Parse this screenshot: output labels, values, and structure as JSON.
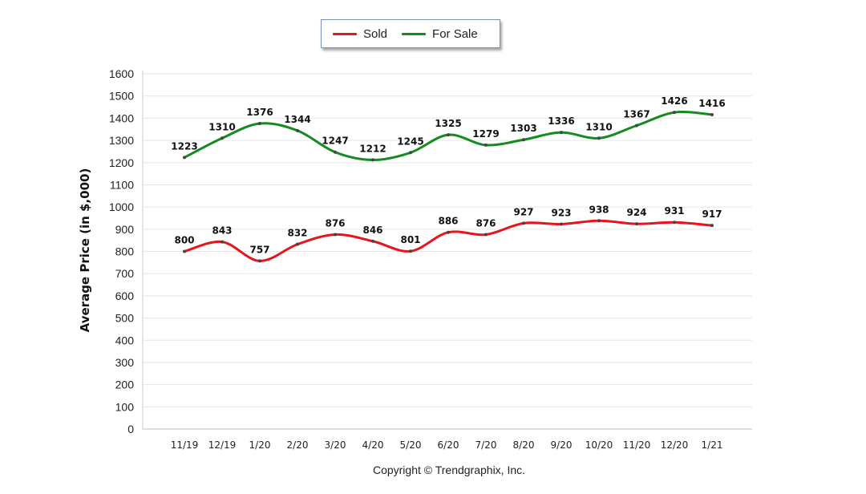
{
  "chart_data": {
    "type": "line",
    "categories": [
      "11/19",
      "12/19",
      "1/20",
      "2/20",
      "3/20",
      "4/20",
      "5/20",
      "6/20",
      "7/20",
      "8/20",
      "9/20",
      "10/20",
      "11/20",
      "12/20",
      "1/21"
    ],
    "series": [
      {
        "name": "Sold",
        "color": "#e8141b",
        "values": [
          800,
          843,
          757,
          832,
          876,
          846,
          801,
          886,
          876,
          927,
          923,
          938,
          924,
          931,
          917
        ]
      },
      {
        "name": "For Sale",
        "color": "#158a1e",
        "values": [
          1223,
          1310,
          1376,
          1344,
          1247,
          1212,
          1245,
          1325,
          1279,
          1303,
          1336,
          1310,
          1367,
          1426,
          1416
        ]
      }
    ],
    "ylabel": "Average Price (in $,000)",
    "ylim": [
      0,
      1600
    ],
    "yticks": [
      0,
      100,
      200,
      300,
      400,
      500,
      600,
      700,
      800,
      900,
      1000,
      1100,
      1200,
      1300,
      1400,
      1500,
      1600
    ],
    "grid": true,
    "smooth": true,
    "legend_position": "top-center",
    "footer": "Copyright © Trendgraphix, Inc."
  }
}
